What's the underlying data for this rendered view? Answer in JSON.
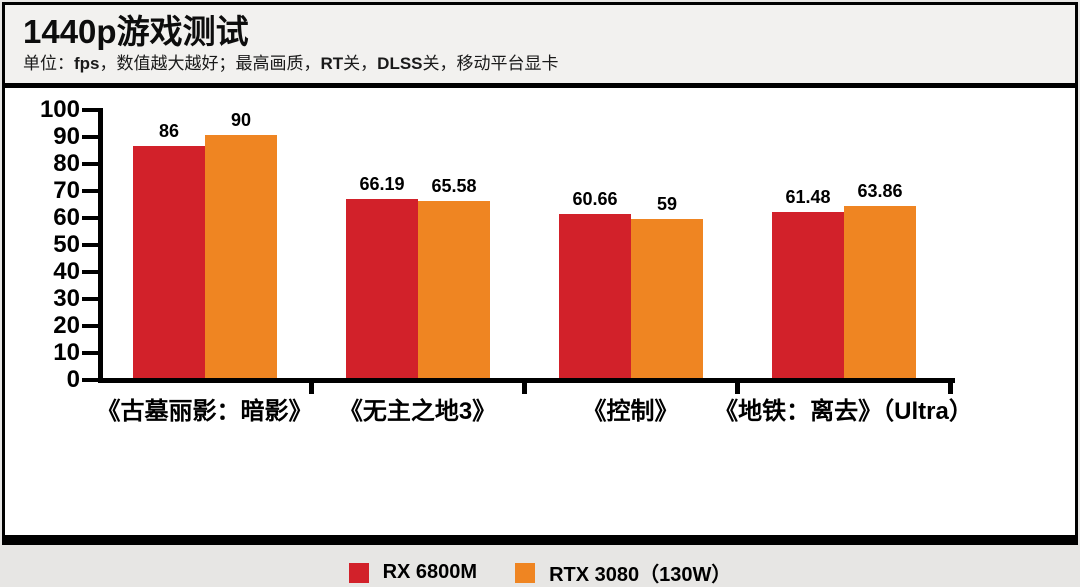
{
  "header": {
    "title": "1440p游戏测试",
    "subtitle_segments": [
      {
        "text": "单位：",
        "bold": false
      },
      {
        "text": "fps",
        "bold": true
      },
      {
        "text": "，数值越大越好；最高画质，",
        "bold": false
      },
      {
        "text": "RT",
        "bold": true
      },
      {
        "text": "关，",
        "bold": false
      },
      {
        "text": "DLSS",
        "bold": true
      },
      {
        "text": "关，移动平台显卡",
        "bold": false
      }
    ]
  },
  "chart_data": {
    "type": "bar",
    "title": "1440p游戏测试",
    "categories": [
      "《古墓丽影：暗影》",
      "《无主之地3》",
      "《控制》",
      "《地铁：离去》（Ultra）"
    ],
    "series": [
      {
        "name": "RX 6800M",
        "color": "#d2212a",
        "values": [
          86,
          66.19,
          60.66,
          61.48
        ],
        "value_labels": [
          "86",
          "66.19",
          "60.66",
          "61.48"
        ]
      },
      {
        "name": "RTX 3080（130W）",
        "color": "#ef8522",
        "values": [
          90,
          65.58,
          59,
          63.86
        ],
        "value_labels": [
          "90",
          "65.58",
          "59",
          "63.86"
        ]
      }
    ],
    "ylim": [
      0,
      100
    ],
    "ytick_step": 10,
    "xlabel": "",
    "ylabel": "",
    "grid": false,
    "legend_position": "bottom"
  },
  "colors": {
    "axis": "#000000",
    "header_bg": "#f2f1ef",
    "frame": "#000000"
  }
}
